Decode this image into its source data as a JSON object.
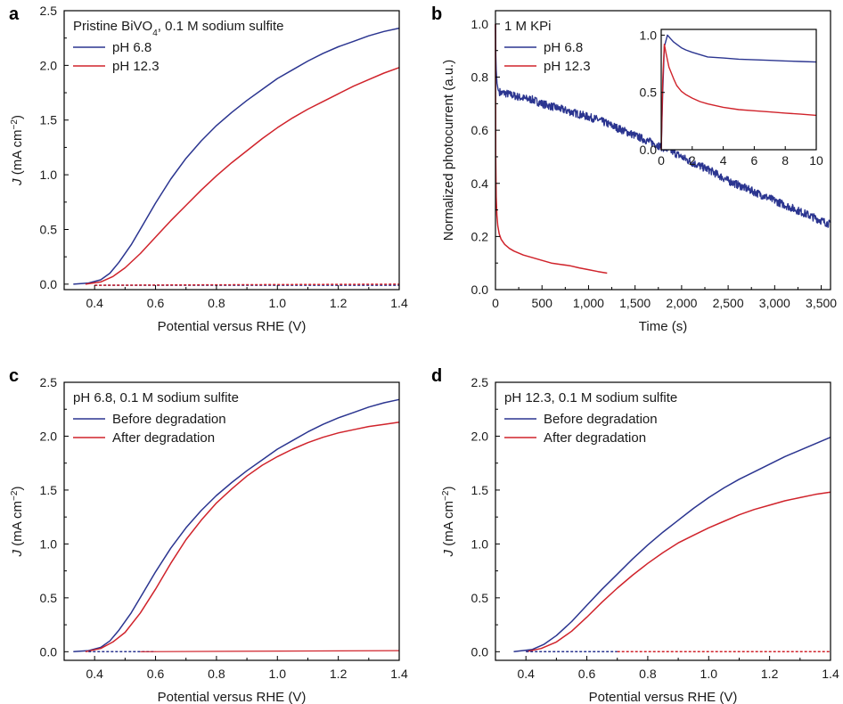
{
  "colors": {
    "blue": "#2b3590",
    "red": "#d0232b"
  },
  "chart_data": [
    {
      "id": "a",
      "type": "line",
      "panel_label": "a",
      "xlabel": "Potential versus RHE (V)",
      "ylabel_italic": "J",
      "ylabel_rest": " (mA cm",
      "ylabel_sup": "−2",
      "ylabel_close": ")",
      "xlim": [
        0.3,
        1.4
      ],
      "ylim": [
        -0.05,
        2.5
      ],
      "xticks": [
        0.4,
        0.6,
        0.8,
        1.0,
        1.2,
        1.4
      ],
      "xtick_labels": [
        "0.4",
        "0.6",
        "0.8",
        "1.0",
        "1.2",
        "1.4"
      ],
      "yticks": [
        0.0,
        0.5,
        1.0,
        1.5,
        2.0,
        2.5
      ],
      "ytick_labels": [
        "0.0",
        "0.5",
        "1.0",
        "1.5",
        "2.0",
        "2.5"
      ],
      "legend_title_main": "Pristine BiVO",
      "legend_title_sub": "4",
      "legend_title_rest": ", 0.1 M sodium sulfite",
      "legend_items": [
        "pH 6.8",
        "pH 12.3"
      ],
      "series": [
        {
          "name": "pH 6.8",
          "color": "blue",
          "style": "solid",
          "x": [
            0.33,
            0.38,
            0.42,
            0.45,
            0.48,
            0.52,
            0.56,
            0.6,
            0.65,
            0.7,
            0.75,
            0.8,
            0.85,
            0.9,
            0.95,
            1.0,
            1.05,
            1.1,
            1.15,
            1.2,
            1.25,
            1.3,
            1.35,
            1.4
          ],
          "y": [
            0.0,
            0.01,
            0.04,
            0.1,
            0.2,
            0.36,
            0.55,
            0.74,
            0.96,
            1.15,
            1.31,
            1.45,
            1.57,
            1.68,
            1.78,
            1.88,
            1.96,
            2.04,
            2.11,
            2.17,
            2.22,
            2.27,
            2.31,
            2.34
          ]
        },
        {
          "name": "pH 12.3",
          "color": "red",
          "style": "solid",
          "x": [
            0.37,
            0.42,
            0.46,
            0.5,
            0.55,
            0.6,
            0.65,
            0.7,
            0.75,
            0.8,
            0.85,
            0.9,
            0.95,
            1.0,
            1.05,
            1.1,
            1.15,
            1.2,
            1.25,
            1.3,
            1.35,
            1.4
          ],
          "y": [
            0.0,
            0.02,
            0.07,
            0.15,
            0.28,
            0.43,
            0.58,
            0.72,
            0.86,
            0.99,
            1.11,
            1.22,
            1.33,
            1.43,
            1.52,
            1.6,
            1.67,
            1.74,
            1.81,
            1.87,
            1.93,
            1.98
          ]
        },
        {
          "name": "dark pH 6.8",
          "color": "blue",
          "style": "dashed",
          "x": [
            0.4,
            1.4
          ],
          "y": [
            -0.01,
            -0.01
          ]
        },
        {
          "name": "dark pH 12.3",
          "color": "red",
          "style": "dashed",
          "x": [
            0.4,
            1.4
          ],
          "y": [
            -0.01,
            0.0
          ]
        }
      ]
    },
    {
      "id": "b",
      "type": "line",
      "panel_label": "b",
      "xlabel": "Time (s)",
      "ylabel": "Normalized photocurrent (a.u.)",
      "xlim": [
        0,
        3600
      ],
      "ylim": [
        0,
        1.05
      ],
      "xticks": [
        0,
        500,
        1000,
        1500,
        2000,
        2500,
        3000,
        3500
      ],
      "xtick_labels": [
        "0",
        "500",
        "1,000",
        "1,500",
        "2,000",
        "2,500",
        "3,000",
        "3,500"
      ],
      "yticks": [
        0.0,
        0.2,
        0.4,
        0.6,
        0.8,
        1.0
      ],
      "ytick_labels": [
        "0.0",
        "0.2",
        "0.4",
        "0.6",
        "0.8",
        "1.0"
      ],
      "legend_title": "1 M KPi",
      "legend_items": [
        "pH 6.8",
        "pH 12.3"
      ],
      "series": [
        {
          "name": "pH 6.8",
          "color": "blue",
          "style": "noisy",
          "x": [
            0,
            5,
            15,
            30,
            60,
            100,
            200,
            300,
            400,
            500,
            700,
            900,
            1100,
            1300,
            1500,
            1700,
            1900,
            2100,
            2300,
            2500,
            2700,
            2900,
            3100,
            3300,
            3500,
            3600
          ],
          "y": [
            1.0,
            0.85,
            0.78,
            0.75,
            0.74,
            0.74,
            0.73,
            0.72,
            0.715,
            0.7,
            0.68,
            0.66,
            0.64,
            0.61,
            0.58,
            0.55,
            0.52,
            0.48,
            0.45,
            0.41,
            0.38,
            0.35,
            0.32,
            0.29,
            0.26,
            0.245
          ]
        },
        {
          "name": "pH 12.3",
          "color": "red",
          "style": "solid",
          "x": [
            0,
            3,
            8,
            15,
            25,
            40,
            60,
            100,
            150,
            200,
            300,
            400,
            500,
            600,
            700,
            800,
            900,
            1000,
            1100,
            1200
          ],
          "y": [
            1.0,
            0.5,
            0.35,
            0.28,
            0.24,
            0.21,
            0.19,
            0.17,
            0.155,
            0.145,
            0.13,
            0.12,
            0.11,
            0.1,
            0.095,
            0.09,
            0.082,
            0.075,
            0.068,
            0.062
          ]
        }
      ],
      "inset": {
        "xlim": [
          0,
          10
        ],
        "ylim": [
          0,
          1.05
        ],
        "xticks": [
          0,
          2,
          4,
          6,
          8,
          10
        ],
        "xtick_labels": [
          "0",
          "2",
          "4",
          "6",
          "8",
          "10"
        ],
        "yticks": [
          0.0,
          0.5,
          1.0
        ],
        "ytick_labels": [
          "0.0",
          "0.5",
          "1.0"
        ],
        "series": [
          {
            "name": "pH 6.8",
            "color": "blue",
            "x": [
              0,
              0.1,
              0.2,
              0.4,
              0.6,
              0.8,
              1.0,
              1.3,
              1.6,
              2.0,
              2.5,
              3.0,
              4.0,
              5.0,
              6.0,
              7.0,
              8.0,
              9.0,
              10.0
            ],
            "y": [
              0.0,
              0.5,
              0.9,
              1.0,
              0.97,
              0.94,
              0.92,
              0.89,
              0.87,
              0.85,
              0.83,
              0.81,
              0.8,
              0.79,
              0.785,
              0.78,
              0.775,
              0.77,
              0.765
            ]
          },
          {
            "name": "pH 12.3",
            "color": "red",
            "x": [
              0,
              0.1,
              0.2,
              0.3,
              0.5,
              0.8,
              1.0,
              1.3,
              1.6,
              2.0,
              2.5,
              3.0,
              4.0,
              5.0,
              6.0,
              7.0,
              8.0,
              9.0,
              10.0
            ],
            "y": [
              0.0,
              0.6,
              0.92,
              0.85,
              0.72,
              0.62,
              0.56,
              0.51,
              0.48,
              0.45,
              0.42,
              0.4,
              0.37,
              0.35,
              0.34,
              0.33,
              0.32,
              0.31,
              0.3
            ]
          }
        ]
      }
    },
    {
      "id": "c",
      "type": "line",
      "panel_label": "c",
      "xlabel": "Potential versus RHE (V)",
      "ylabel_italic": "J",
      "ylabel_rest": " (mA cm",
      "ylabel_sup": "−2",
      "ylabel_close": ")",
      "xlim": [
        0.3,
        1.4
      ],
      "ylim": [
        -0.08,
        2.5
      ],
      "xticks": [
        0.4,
        0.6,
        0.8,
        1.0,
        1.2,
        1.4
      ],
      "xtick_labels": [
        "0.4",
        "0.6",
        "0.8",
        "1.0",
        "1.2",
        "1.4"
      ],
      "yticks": [
        0.0,
        0.5,
        1.0,
        1.5,
        2.0,
        2.5
      ],
      "ytick_labels": [
        "0.0",
        "0.5",
        "1.0",
        "1.5",
        "2.0",
        "2.5"
      ],
      "legend_title": "pH 6.8, 0.1 M sodium sulfite",
      "legend_items": [
        "Before degradation",
        "After degradation"
      ],
      "series": [
        {
          "name": "Before degradation",
          "color": "blue",
          "style": "solid",
          "x": [
            0.33,
            0.38,
            0.42,
            0.45,
            0.48,
            0.52,
            0.56,
            0.6,
            0.65,
            0.7,
            0.75,
            0.8,
            0.85,
            0.9,
            0.95,
            1.0,
            1.05,
            1.1,
            1.15,
            1.2,
            1.25,
            1.3,
            1.35,
            1.4
          ],
          "y": [
            0.0,
            0.01,
            0.04,
            0.1,
            0.2,
            0.36,
            0.55,
            0.74,
            0.96,
            1.15,
            1.31,
            1.45,
            1.57,
            1.68,
            1.78,
            1.88,
            1.96,
            2.04,
            2.11,
            2.17,
            2.22,
            2.27,
            2.31,
            2.34
          ]
        },
        {
          "name": "After degradation",
          "color": "red",
          "style": "solid",
          "x": [
            0.37,
            0.42,
            0.46,
            0.5,
            0.55,
            0.6,
            0.65,
            0.7,
            0.75,
            0.8,
            0.85,
            0.9,
            0.95,
            1.0,
            1.05,
            1.1,
            1.15,
            1.2,
            1.25,
            1.3,
            1.35,
            1.4
          ],
          "y": [
            0.0,
            0.03,
            0.09,
            0.18,
            0.36,
            0.58,
            0.82,
            1.04,
            1.22,
            1.38,
            1.51,
            1.63,
            1.73,
            1.81,
            1.88,
            1.94,
            1.99,
            2.03,
            2.06,
            2.09,
            2.11,
            2.13
          ]
        },
        {
          "name": "dark before",
          "color": "blue",
          "style": "dashed",
          "x": [
            0.38,
            0.6
          ],
          "y": [
            0.0,
            0.0
          ]
        },
        {
          "name": "dark after",
          "color": "red",
          "style": "solid-thin",
          "x": [
            0.55,
            1.4
          ],
          "y": [
            0.0,
            0.01
          ]
        }
      ]
    },
    {
      "id": "d",
      "type": "line",
      "panel_label": "d",
      "xlabel": "Potential versus RHE (V)",
      "ylabel_italic": "J",
      "ylabel_rest": " (mA cm",
      "ylabel_sup": "−2",
      "ylabel_close": ")",
      "xlim": [
        0.3,
        1.4
      ],
      "ylim": [
        -0.08,
        2.5
      ],
      "xticks": [
        0.4,
        0.6,
        0.8,
        1.0,
        1.2,
        1.4
      ],
      "xtick_labels": [
        "0.4",
        "0.6",
        "0.8",
        "1.0",
        "1.2",
        "1.4"
      ],
      "yticks": [
        0.0,
        0.5,
        1.0,
        1.5,
        2.0,
        2.5
      ],
      "ytick_labels": [
        "0.0",
        "0.5",
        "1.0",
        "1.5",
        "2.0",
        "2.5"
      ],
      "legend_title": "pH 12.3, 0.1 M sodium sulfite",
      "legend_items": [
        "Before degradation",
        "After degradation"
      ],
      "series": [
        {
          "name": "Before degradation",
          "color": "blue",
          "style": "solid",
          "x": [
            0.36,
            0.42,
            0.46,
            0.5,
            0.55,
            0.6,
            0.65,
            0.7,
            0.75,
            0.8,
            0.85,
            0.9,
            0.95,
            1.0,
            1.05,
            1.1,
            1.15,
            1.2,
            1.25,
            1.3,
            1.35,
            1.4
          ],
          "y": [
            0.0,
            0.02,
            0.07,
            0.15,
            0.28,
            0.43,
            0.58,
            0.72,
            0.86,
            0.99,
            1.11,
            1.22,
            1.33,
            1.43,
            1.52,
            1.6,
            1.67,
            1.74,
            1.81,
            1.87,
            1.93,
            1.99
          ]
        },
        {
          "name": "After degradation",
          "color": "red",
          "style": "solid",
          "x": [
            0.4,
            0.45,
            0.5,
            0.55,
            0.6,
            0.65,
            0.7,
            0.75,
            0.8,
            0.85,
            0.9,
            0.95,
            1.0,
            1.05,
            1.1,
            1.15,
            1.2,
            1.25,
            1.3,
            1.35,
            1.4
          ],
          "y": [
            0.0,
            0.03,
            0.09,
            0.19,
            0.32,
            0.46,
            0.59,
            0.71,
            0.82,
            0.92,
            1.01,
            1.08,
            1.15,
            1.21,
            1.27,
            1.32,
            1.36,
            1.4,
            1.43,
            1.46,
            1.48
          ]
        },
        {
          "name": "dark before",
          "color": "blue",
          "style": "dashed",
          "x": [
            0.4,
            0.7
          ],
          "y": [
            0.0,
            0.0
          ]
        },
        {
          "name": "dark after",
          "color": "red",
          "style": "dashed",
          "x": [
            0.7,
            1.4
          ],
          "y": [
            0.0,
            0.0
          ]
        }
      ]
    }
  ]
}
